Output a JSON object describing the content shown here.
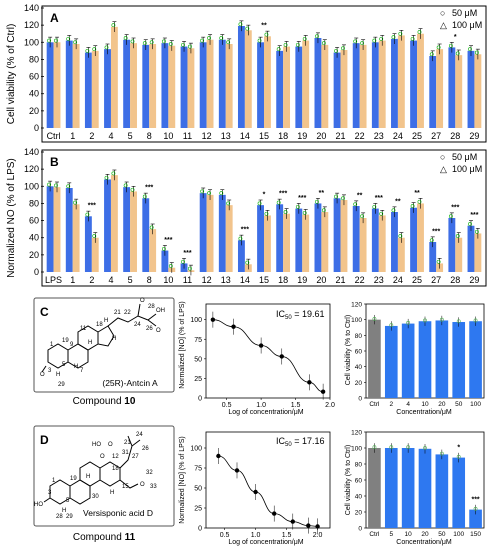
{
  "colors": {
    "blue": "#3d6ee6",
    "orange": "#f2c48c",
    "teal": "#4fc3a1",
    "green": "#4caf50",
    "gray": "#808080",
    "bar_blue_c": "#2e78f0",
    "frame": "#000000"
  },
  "chart_data": [
    {
      "panel": "A",
      "type": "bar",
      "ylabel": "Cell viability (% of Ctrl)",
      "ylim": [
        0,
        140
      ],
      "yticks": [
        "0",
        "20",
        "40",
        "60",
        "80",
        "100",
        "120",
        "140"
      ],
      "categories": [
        "Ctrl",
        "1",
        "2",
        "4",
        "5",
        "8",
        "10",
        "11",
        "12",
        "13",
        "14",
        "15",
        "18",
        "19",
        "20",
        "21",
        "22",
        "23",
        "24",
        "25",
        "27",
        "28",
        "29"
      ],
      "series": [
        {
          "name": "50 μM",
          "marker": "○",
          "values": [
            100,
            102,
            88,
            92,
            103,
            97,
            99,
            95,
            100,
            103,
            119,
            100,
            90,
            95,
            105,
            88,
            99,
            100,
            104,
            102,
            84,
            94,
            90
          ]
        },
        {
          "name": "100 μM",
          "marker": "△",
          "values": [
            100,
            98,
            90,
            118,
            99,
            98,
            96,
            93,
            103,
            98,
            114,
            107,
            95,
            102,
            97,
            91,
            97,
            102,
            108,
            110,
            92,
            85,
            86
          ]
        }
      ],
      "annotations": [
        {
          "category": "15",
          "text": "**"
        },
        {
          "category": "28",
          "text": "*"
        }
      ]
    },
    {
      "panel": "B",
      "type": "bar",
      "ylabel": "Normalized NO (% of LPS)",
      "ylim": [
        0,
        140
      ],
      "yticks": [
        "0",
        "20",
        "40",
        "60",
        "80",
        "100",
        "120",
        "140"
      ],
      "categories": [
        "LPS",
        "1",
        "2",
        "4",
        "5",
        "8",
        "10",
        "11",
        "12",
        "13",
        "14",
        "15",
        "18",
        "19",
        "20",
        "21",
        "22",
        "23",
        "24",
        "25",
        "27",
        "28",
        "29"
      ],
      "series": [
        {
          "name": "50 μM",
          "marker": "○",
          "values": [
            100,
            98,
            65,
            108,
            99,
            86,
            25,
            10,
            92,
            90,
            37,
            78,
            79,
            74,
            80,
            86,
            77,
            74,
            70,
            75,
            35,
            63,
            54
          ]
        },
        {
          "name": "100 μM",
          "marker": "△",
          "values": [
            99,
            79,
            40,
            113,
            94,
            50,
            5,
            2,
            90,
            78,
            9,
            66,
            68,
            67,
            70,
            84,
            63,
            66,
            40,
            80,
            10,
            40,
            45
          ]
        }
      ],
      "annotations": [
        {
          "category": "2",
          "text": "***"
        },
        {
          "category": "8",
          "text": "***"
        },
        {
          "category": "10",
          "text": "***"
        },
        {
          "category": "11",
          "text": "***"
        },
        {
          "category": "14",
          "text": "***"
        },
        {
          "category": "15",
          "text": "*"
        },
        {
          "category": "18",
          "text": "***"
        },
        {
          "category": "19",
          "text": "***"
        },
        {
          "category": "20",
          "text": "**"
        },
        {
          "category": "22",
          "text": "**"
        },
        {
          "category": "23",
          "text": "***"
        },
        {
          "category": "24",
          "text": "**"
        },
        {
          "category": "25",
          "text": "**"
        },
        {
          "category": "27",
          "text": "***"
        },
        {
          "category": "28",
          "text": "***"
        },
        {
          "category": "29",
          "text": "***"
        }
      ]
    },
    {
      "panel": "C-IC50",
      "type": "line",
      "xlabel": "Log of concentration/μM",
      "ylabel": "Normalized [NO] (% of LPS)",
      "xlim": [
        0.2,
        2.0
      ],
      "ylim": [
        0,
        120
      ],
      "xticks": [
        "0.5",
        "1.0",
        "1.5",
        "2.0"
      ],
      "yticks": [
        "0",
        "25",
        "50",
        "75",
        "100"
      ],
      "x": [
        0.3,
        0.6,
        1.0,
        1.3,
        1.7,
        1.9
      ],
      "y": [
        100,
        91,
        67,
        53,
        20,
        8
      ],
      "ic50_label": "IC",
      "ic50_sub": "50",
      "ic50_value": " = 19.61"
    },
    {
      "panel": "C-viability",
      "type": "bar",
      "xlabel": "Concentration/μM",
      "ylabel": "Cell viability (% to Ctrl)",
      "ylim": [
        0,
        120
      ],
      "yticks": [
        "0",
        "20",
        "40",
        "60",
        "80",
        "100",
        "120"
      ],
      "categories": [
        "Ctrl",
        "2",
        "4",
        "10",
        "20",
        "50",
        "100"
      ],
      "values": [
        100,
        92,
        95,
        98,
        99,
        97,
        98
      ]
    },
    {
      "panel": "D-IC50",
      "type": "line",
      "xlabel": "Log of concentration/μM",
      "ylabel": "Normalized [NO] (% of LPS)",
      "xlim": [
        0.2,
        2.2
      ],
      "ylim": [
        0,
        120
      ],
      "xticks": [
        "0.5",
        "1.0",
        "1.5",
        "2.0"
      ],
      "yticks": [
        "0",
        "25",
        "50",
        "75",
        "100"
      ],
      "x": [
        0.4,
        0.7,
        1.0,
        1.3,
        1.6,
        1.85,
        2.0
      ],
      "y": [
        90,
        72,
        45,
        18,
        8,
        3,
        2
      ],
      "ic50_label": "IC",
      "ic50_sub": "50",
      "ic50_value": " = 17.16"
    },
    {
      "panel": "D-viability",
      "type": "bar",
      "xlabel": "Concentration/μM",
      "ylabel": "Cell viability (% to Ctrl)",
      "ylim": [
        0,
        120
      ],
      "yticks": [
        "0",
        "20",
        "40",
        "60",
        "80",
        "100",
        "120"
      ],
      "categories": [
        "Ctrl",
        "5",
        "10",
        "20",
        "50",
        "100",
        "150"
      ],
      "values": [
        100,
        100,
        100,
        99,
        92,
        88,
        23
      ],
      "annotations": [
        {
          "category": "100",
          "text": "*"
        },
        {
          "category": "150",
          "text": "***"
        }
      ]
    }
  ],
  "panels": {
    "a": "A",
    "b": "B",
    "c": "C",
    "d": "D"
  },
  "compounds": {
    "c_name": "(25R)-Antcin A",
    "c_label": "Compound ",
    "c_num": "10",
    "d_name": "Versisponic acid D",
    "d_label": "Compound ",
    "d_num": "11"
  },
  "structure_c": {
    "atoms": [
      "H",
      "O",
      "O",
      "OH",
      "O",
      "H",
      "H",
      "H",
      "H"
    ],
    "numbers": [
      "1",
      "3",
      "5",
      "7",
      "9",
      "11",
      "18",
      "19",
      "21",
      "22",
      "24",
      "26",
      "28",
      "29"
    ]
  },
  "structure_d": {
    "atoms": [
      "HO",
      "H",
      "H",
      "HO",
      "O",
      "O",
      "O",
      "H"
    ],
    "numbers": [
      "1",
      "3",
      "5",
      "12",
      "15",
      "18",
      "19",
      "21",
      "24",
      "26",
      "27",
      "28",
      "29",
      "30",
      "31",
      "32",
      "33"
    ]
  }
}
